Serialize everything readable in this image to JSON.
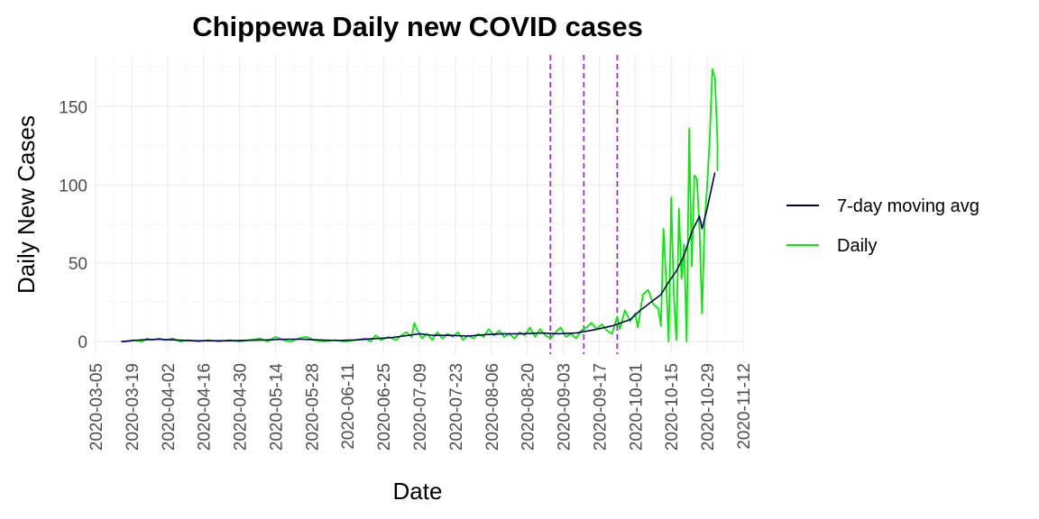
{
  "chart_data": {
    "type": "line",
    "title": "Chippewa Daily new COVID cases",
    "xlabel": "Date",
    "ylabel": "Daily New Cases",
    "x_type": "date",
    "xlim": [
      "2020-03-05",
      "2020-11-12"
    ],
    "ylim": [
      -8,
      183
    ],
    "x_ticks": [
      "2020-03-05",
      "2020-03-19",
      "2020-04-02",
      "2020-04-16",
      "2020-04-30",
      "2020-05-14",
      "2020-05-28",
      "2020-06-11",
      "2020-06-25",
      "2020-07-09",
      "2020-07-23",
      "2020-08-06",
      "2020-08-20",
      "2020-09-03",
      "2020-09-17",
      "2020-10-01",
      "2020-10-15",
      "2020-10-29",
      "2020-11-12"
    ],
    "y_ticks": [
      0,
      50,
      100,
      150
    ],
    "grid": true,
    "legend_position": "right",
    "vlines": [
      {
        "x": "2020-08-29",
        "style": "dashed",
        "color": "#9932cc"
      },
      {
        "x": "2020-09-11",
        "style": "dashed",
        "color": "#9932cc"
      },
      {
        "x": "2020-09-24",
        "style": "dashed",
        "color": "#9932cc"
      }
    ],
    "series": [
      {
        "name": "Daily",
        "color": "#00ee00",
        "points": [
          [
            "2020-03-15",
            0
          ],
          [
            "2020-03-17",
            0
          ],
          [
            "2020-03-20",
            1
          ],
          [
            "2020-03-23",
            0
          ],
          [
            "2020-03-25",
            2
          ],
          [
            "2020-03-27",
            1
          ],
          [
            "2020-03-30",
            2
          ],
          [
            "2020-04-01",
            1
          ],
          [
            "2020-04-04",
            2
          ],
          [
            "2020-04-07",
            0
          ],
          [
            "2020-04-10",
            1
          ],
          [
            "2020-04-14",
            0
          ],
          [
            "2020-04-18",
            1
          ],
          [
            "2020-04-22",
            0
          ],
          [
            "2020-04-26",
            1
          ],
          [
            "2020-04-30",
            0
          ],
          [
            "2020-05-04",
            1
          ],
          [
            "2020-05-08",
            2
          ],
          [
            "2020-05-11",
            0
          ],
          [
            "2020-05-14",
            3
          ],
          [
            "2020-05-17",
            1
          ],
          [
            "2020-05-20",
            0
          ],
          [
            "2020-05-23",
            2
          ],
          [
            "2020-05-26",
            3
          ],
          [
            "2020-05-29",
            1
          ],
          [
            "2020-06-02",
            0
          ],
          [
            "2020-06-06",
            1
          ],
          [
            "2020-06-10",
            0
          ],
          [
            "2020-06-14",
            1
          ],
          [
            "2020-06-18",
            2
          ],
          [
            "2020-06-20",
            0
          ],
          [
            "2020-06-22",
            4
          ],
          [
            "2020-06-24",
            1
          ],
          [
            "2020-06-27",
            3
          ],
          [
            "2020-06-30",
            1
          ],
          [
            "2020-07-02",
            4
          ],
          [
            "2020-07-04",
            6
          ],
          [
            "2020-07-06",
            3
          ],
          [
            "2020-07-07",
            12
          ],
          [
            "2020-07-08",
            8
          ],
          [
            "2020-07-10",
            2
          ],
          [
            "2020-07-12",
            5
          ],
          [
            "2020-07-14",
            1
          ],
          [
            "2020-07-16",
            6
          ],
          [
            "2020-07-18",
            2
          ],
          [
            "2020-07-20",
            5
          ],
          [
            "2020-07-22",
            3
          ],
          [
            "2020-07-24",
            6
          ],
          [
            "2020-07-26",
            1
          ],
          [
            "2020-07-28",
            4
          ],
          [
            "2020-07-30",
            2
          ],
          [
            "2020-08-01",
            5
          ],
          [
            "2020-08-03",
            3
          ],
          [
            "2020-08-05",
            8
          ],
          [
            "2020-08-07",
            4
          ],
          [
            "2020-08-09",
            7
          ],
          [
            "2020-08-11",
            3
          ],
          [
            "2020-08-13",
            5
          ],
          [
            "2020-08-15",
            2
          ],
          [
            "2020-08-17",
            6
          ],
          [
            "2020-08-19",
            4
          ],
          [
            "2020-08-21",
            9
          ],
          [
            "2020-08-23",
            3
          ],
          [
            "2020-08-25",
            8
          ],
          [
            "2020-08-27",
            4
          ],
          [
            "2020-08-29",
            2
          ],
          [
            "2020-08-31",
            6
          ],
          [
            "2020-09-02",
            9
          ],
          [
            "2020-09-04",
            3
          ],
          [
            "2020-09-06",
            5
          ],
          [
            "2020-09-08",
            2
          ],
          [
            "2020-09-10",
            7
          ],
          [
            "2020-09-12",
            9
          ],
          [
            "2020-09-14",
            12
          ],
          [
            "2020-09-16",
            8
          ],
          [
            "2020-09-18",
            11
          ],
          [
            "2020-09-20",
            7
          ],
          [
            "2020-09-22",
            5
          ],
          [
            "2020-09-24",
            16
          ],
          [
            "2020-09-25",
            8
          ],
          [
            "2020-09-27",
            20
          ],
          [
            "2020-09-29",
            13
          ],
          [
            "2020-10-01",
            18
          ],
          [
            "2020-10-02",
            9
          ],
          [
            "2020-10-04",
            30
          ],
          [
            "2020-10-06",
            33
          ],
          [
            "2020-10-08",
            24
          ],
          [
            "2020-10-10",
            21
          ],
          [
            "2020-10-11",
            10
          ],
          [
            "2020-10-12",
            72
          ],
          [
            "2020-10-13",
            40
          ],
          [
            "2020-10-14",
            0
          ],
          [
            "2020-10-15",
            92
          ],
          [
            "2020-10-16",
            30
          ],
          [
            "2020-10-17",
            1
          ],
          [
            "2020-10-18",
            85
          ],
          [
            "2020-10-19",
            40
          ],
          [
            "2020-10-20",
            62
          ],
          [
            "2020-10-21",
            0
          ],
          [
            "2020-10-22",
            136
          ],
          [
            "2020-10-23",
            48
          ],
          [
            "2020-10-24",
            106
          ],
          [
            "2020-10-25",
            104
          ],
          [
            "2020-10-26",
            72
          ],
          [
            "2020-10-27",
            18
          ],
          [
            "2020-10-28",
            76
          ],
          [
            "2020-10-29",
            100
          ],
          [
            "2020-10-30",
            130
          ],
          [
            "2020-10-31",
            174
          ],
          [
            "2020-11-01",
            168
          ],
          [
            "2020-11-02",
            128
          ],
          [
            "2020-11-02",
            109
          ]
        ]
      },
      {
        "name": "7-day moving avg",
        "color": "#00005a",
        "points": [
          [
            "2020-03-15",
            0
          ],
          [
            "2020-03-22",
            1
          ],
          [
            "2020-03-29",
            1.5
          ],
          [
            "2020-04-05",
            1
          ],
          [
            "2020-04-12",
            0.5
          ],
          [
            "2020-04-19",
            0.5
          ],
          [
            "2020-04-26",
            0.5
          ],
          [
            "2020-05-03",
            0.8
          ],
          [
            "2020-05-10",
            1
          ],
          [
            "2020-05-17",
            1.5
          ],
          [
            "2020-05-24",
            1.5
          ],
          [
            "2020-05-31",
            1
          ],
          [
            "2020-06-07",
            0.7
          ],
          [
            "2020-06-14",
            1
          ],
          [
            "2020-06-21",
            1.8
          ],
          [
            "2020-06-28",
            2.5
          ],
          [
            "2020-07-05",
            4
          ],
          [
            "2020-07-09",
            5
          ],
          [
            "2020-07-14",
            4
          ],
          [
            "2020-07-21",
            4
          ],
          [
            "2020-07-28",
            3.5
          ],
          [
            "2020-08-04",
            4.5
          ],
          [
            "2020-08-11",
            5
          ],
          [
            "2020-08-18",
            5
          ],
          [
            "2020-08-25",
            5.5
          ],
          [
            "2020-09-01",
            5
          ],
          [
            "2020-09-08",
            5.5
          ],
          [
            "2020-09-15",
            7.5
          ],
          [
            "2020-09-22",
            10
          ],
          [
            "2020-09-29",
            14
          ],
          [
            "2020-10-03",
            20
          ],
          [
            "2020-10-07",
            25
          ],
          [
            "2020-10-11",
            30
          ],
          [
            "2020-10-14",
            38
          ],
          [
            "2020-10-17",
            45
          ],
          [
            "2020-10-20",
            55
          ],
          [
            "2020-10-23",
            70
          ],
          [
            "2020-10-26",
            80
          ],
          [
            "2020-10-27",
            72
          ],
          [
            "2020-10-29",
            85
          ],
          [
            "2020-11-01",
            108
          ]
        ]
      }
    ]
  }
}
